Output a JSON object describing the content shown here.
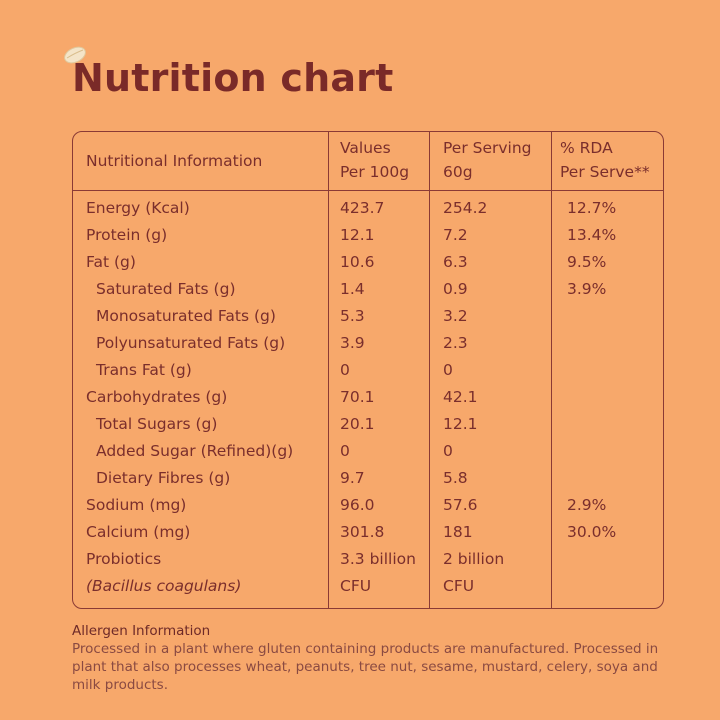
{
  "title": "Nutrition chart",
  "table": {
    "headers": {
      "col0": "Nutritional Information",
      "col1_line1": "Values",
      "col1_line2": "Per 100g",
      "col2_line1": "Per Serving",
      "col2_line2": "60g",
      "col3_line1": "% RDA",
      "col3_line2": "Per Serve**"
    },
    "rows": [
      {
        "name": "Energy (Kcal)",
        "per100": "423.7",
        "serving": "254.2",
        "rda": "12.7%",
        "indent": false
      },
      {
        "name": "Protein (g)",
        "per100": "12.1",
        "serving": "7.2",
        "rda": "13.4%",
        "indent": false
      },
      {
        "name": "Fat (g)",
        "per100": "10.6",
        "serving": "6.3",
        "rda": "9.5%",
        "indent": false
      },
      {
        "name": "Saturated Fats (g)",
        "per100": "1.4",
        "serving": "0.9",
        "rda": "3.9%",
        "indent": true
      },
      {
        "name": "Monosaturated Fats (g)",
        "per100": "5.3",
        "serving": "3.2",
        "rda": "",
        "indent": true
      },
      {
        "name": "Polyunsaturated Fats (g)",
        "per100": "3.9",
        "serving": "2.3",
        "rda": "",
        "indent": true
      },
      {
        "name": "Trans Fat (g)",
        "per100": "0",
        "serving": "0",
        "rda": "",
        "indent": true
      },
      {
        "name": "Carbohydrates (g)",
        "per100": "70.1",
        "serving": "42.1",
        "rda": "",
        "indent": false
      },
      {
        "name": "Total Sugars (g)",
        "per100": "20.1",
        "serving": "12.1",
        "rda": "",
        "indent": true
      },
      {
        "name": "Added Sugar (Refined)(g)",
        "per100": "0",
        "serving": "0",
        "rda": "",
        "indent": true
      },
      {
        "name": "Dietary Fibres (g)",
        "per100": "9.7",
        "serving": "5.8",
        "rda": "",
        "indent": true
      },
      {
        "name": "Sodium (mg)",
        "per100": "96.0",
        "serving": "57.6",
        "rda": "2.9%",
        "indent": false
      },
      {
        "name": "Calcium (mg)",
        "per100": "301.8",
        "serving": "181",
        "rda": "30.0%",
        "indent": false
      },
      {
        "name": "Probiotics",
        "per100": "3.3 billion",
        "serving": "2 billion",
        "rda": "",
        "indent": false
      },
      {
        "name": "(Bacillus coagulans)",
        "per100": "CFU",
        "serving": "CFU",
        "rda": "",
        "indent": false,
        "italic": true
      }
    ]
  },
  "allergen": {
    "title": "Allergen Information",
    "text": "Processed in a plant where gluten containing products are manufactured. Processed in plant that also processes wheat, peanuts, tree nut, sesame, mustard, celery, soya and milk products."
  },
  "colors": {
    "background": "#f7a86b",
    "text": "#7a2e2c",
    "border": "#8a3a35"
  },
  "icons": {
    "logo": "oat-grain-icon"
  }
}
